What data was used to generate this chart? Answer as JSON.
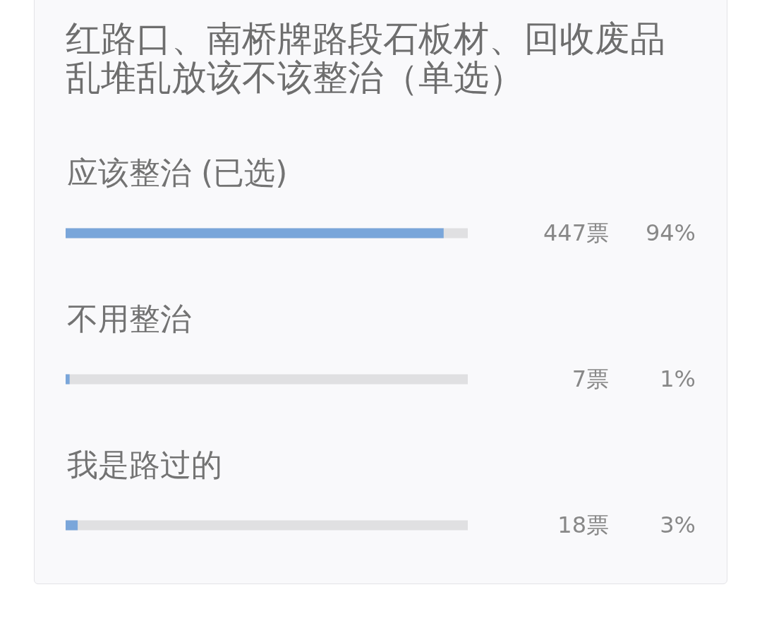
{
  "chart_data": {
    "type": "bar",
    "orientation": "horizontal",
    "title": "红路口、南桥牌路段石板材、回收废品乱堆乱放该不该整治（单选）",
    "categories": [
      "应该整治 (已选)",
      "不用整治",
      "我是路过的"
    ],
    "values": [
      94,
      1,
      3
    ],
    "value_labels": [
      "94%",
      "1%",
      "3%"
    ],
    "annotations": [
      "447票",
      "7票",
      "18票"
    ],
    "color": "#7aa6da",
    "xlim": [
      0,
      100
    ]
  }
}
